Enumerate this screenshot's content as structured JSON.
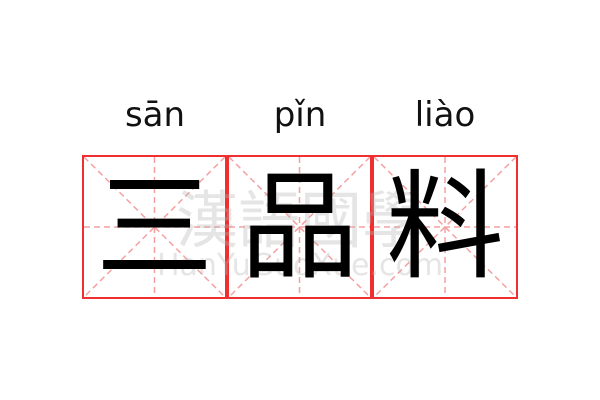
{
  "entries": [
    {
      "pinyin": "sān",
      "char": "三"
    },
    {
      "pinyin": "pǐn",
      "char": "品"
    },
    {
      "pinyin": "liào",
      "char": "料"
    }
  ],
  "watermark": {
    "title": "漢語國學",
    "url": "HanYuGuoXue.com"
  },
  "colors": {
    "border": "#f03030",
    "guide": "#f5a0a0"
  }
}
